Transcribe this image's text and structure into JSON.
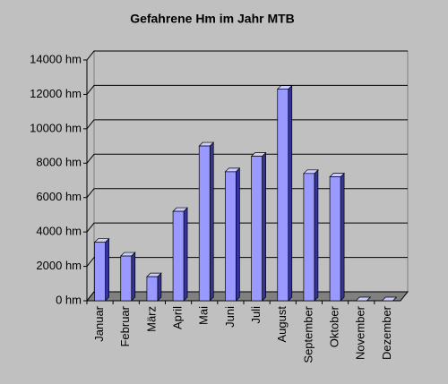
{
  "chart_data": {
    "type": "bar",
    "title": "Gefahrene Hm im Jahr MTB",
    "categories": [
      "Januar",
      "Februar",
      "März",
      "April",
      "Mai",
      "Juni",
      "Juli",
      "August",
      "September",
      "Oktober",
      "November",
      "Dezember"
    ],
    "values": [
      3400,
      2600,
      1400,
      5200,
      9000,
      7500,
      8400,
      12300,
      7400,
      7200,
      0,
      0
    ],
    "color": "#9999ff",
    "ylim": [
      0,
      14000
    ],
    "yticks": [
      {
        "value": 0,
        "label": "0 hm"
      },
      {
        "value": 2000,
        "label": "2000 hm"
      },
      {
        "value": 4000,
        "label": "4000 hm"
      },
      {
        "value": 6000,
        "label": "6000 hm"
      },
      {
        "value": 8000,
        "label": "8000 hm"
      },
      {
        "value": 10000,
        "label": "10000 hm"
      },
      {
        "value": 12000,
        "label": "12000 hm"
      },
      {
        "value": 14000,
        "label": "14000 hm"
      }
    ],
    "grid": true
  }
}
